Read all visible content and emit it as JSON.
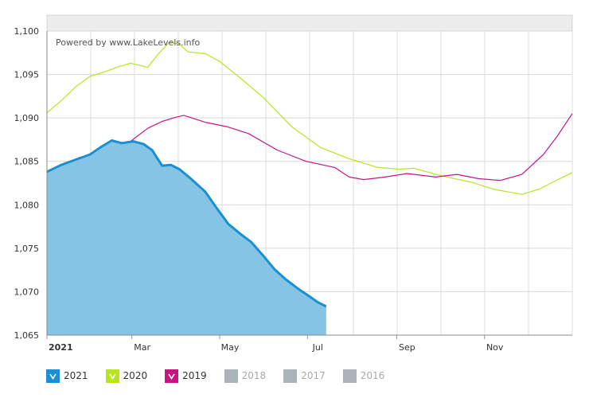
{
  "chart_data": {
    "type": "area",
    "watermark": "Powered by www.LakeLevels.info",
    "ylim": [
      1065,
      1100
    ],
    "xlim_days": [
      0,
      365
    ],
    "y_ticks": [
      "1,100",
      "1,095",
      "1,090",
      "1,085",
      "1,080",
      "1,075",
      "1,070",
      "1,065"
    ],
    "y_tick_values": [
      1100,
      1095,
      1090,
      1085,
      1080,
      1075,
      1070,
      1065
    ],
    "x_ticks": [
      {
        "label": "2021",
        "day": 0,
        "bold": true
      },
      {
        "label": "Mar",
        "day": 59
      },
      {
        "label": "May",
        "day": 120
      },
      {
        "label": "Jul",
        "day": 181
      },
      {
        "label": "Sep",
        "day": 243
      },
      {
        "label": "Nov",
        "day": 304
      }
    ],
    "grid": true,
    "legend_position": "bottom-left",
    "series": [
      {
        "name": "2020",
        "color": "#b5e61d",
        "visible": true,
        "style": "line",
        "points": [
          [
            0,
            1090.6
          ],
          [
            10,
            1092.0
          ],
          [
            20,
            1093.6
          ],
          [
            30,
            1094.8
          ],
          [
            40,
            1095.3
          ],
          [
            50,
            1095.9
          ],
          [
            58,
            1096.3
          ],
          [
            66,
            1096.0
          ],
          [
            70,
            1095.8
          ],
          [
            77,
            1097.3
          ],
          [
            85,
            1098.7
          ],
          [
            92,
            1098.5
          ],
          [
            98,
            1097.6
          ],
          [
            110,
            1097.4
          ],
          [
            120,
            1096.5
          ],
          [
            135,
            1094.5
          ],
          [
            150,
            1092.4
          ],
          [
            170,
            1089.0
          ],
          [
            190,
            1086.6
          ],
          [
            210,
            1085.3
          ],
          [
            230,
            1084.3
          ],
          [
            245,
            1084.1
          ],
          [
            255,
            1084.2
          ],
          [
            275,
            1083.3
          ],
          [
            295,
            1082.6
          ],
          [
            310,
            1081.8
          ],
          [
            330,
            1081.2
          ],
          [
            342,
            1081.8
          ],
          [
            355,
            1082.9
          ],
          [
            365,
            1083.7
          ]
        ]
      },
      {
        "name": "2019",
        "color": "#c71585",
        "visible": true,
        "style": "line",
        "points": [
          [
            0,
            1081.5
          ],
          [
            10,
            1083.0
          ],
          [
            20,
            1084.6
          ],
          [
            30,
            1085.6
          ],
          [
            40,
            1085.9
          ],
          [
            50,
            1086.3
          ],
          [
            58,
            1087.3
          ],
          [
            70,
            1088.8
          ],
          [
            80,
            1089.6
          ],
          [
            90,
            1090.1
          ],
          [
            95,
            1090.3
          ],
          [
            110,
            1089.5
          ],
          [
            125,
            1089.0
          ],
          [
            140,
            1088.2
          ],
          [
            160,
            1086.3
          ],
          [
            180,
            1085.0
          ],
          [
            200,
            1084.3
          ],
          [
            210,
            1083.2
          ],
          [
            220,
            1082.9
          ],
          [
            235,
            1083.2
          ],
          [
            250,
            1083.6
          ],
          [
            270,
            1083.2
          ],
          [
            285,
            1083.5
          ],
          [
            300,
            1083.0
          ],
          [
            315,
            1082.8
          ],
          [
            330,
            1083.5
          ],
          [
            345,
            1085.8
          ],
          [
            355,
            1088.0
          ],
          [
            365,
            1090.5
          ]
        ]
      },
      {
        "name": "2021",
        "color": "#1a8fd1",
        "fill": "#86c4e6",
        "visible": true,
        "style": "area",
        "points": [
          [
            0,
            1083.8
          ],
          [
            10,
            1084.6
          ],
          [
            20,
            1085.2
          ],
          [
            30,
            1085.8
          ],
          [
            37,
            1086.6
          ],
          [
            45,
            1087.4
          ],
          [
            52,
            1087.1
          ],
          [
            60,
            1087.3
          ],
          [
            67,
            1087.0
          ],
          [
            73,
            1086.3
          ],
          [
            80,
            1084.5
          ],
          [
            86,
            1084.6
          ],
          [
            92,
            1084.1
          ],
          [
            100,
            1083.0
          ],
          [
            110,
            1081.5
          ],
          [
            118,
            1079.6
          ],
          [
            126,
            1077.8
          ],
          [
            134,
            1076.7
          ],
          [
            142,
            1075.7
          ],
          [
            150,
            1074.2
          ],
          [
            158,
            1072.6
          ],
          [
            166,
            1071.4
          ],
          [
            174,
            1070.4
          ],
          [
            182,
            1069.5
          ],
          [
            188,
            1068.8
          ],
          [
            194,
            1068.3
          ]
        ]
      }
    ],
    "legend": [
      {
        "label": "2021",
        "color": "#1a8fd1",
        "checked": true
      },
      {
        "label": "2020",
        "color": "#b5e61d",
        "checked": true
      },
      {
        "label": "2019",
        "color": "#c71585",
        "checked": true
      },
      {
        "label": "2018",
        "color": "#a9b3b8",
        "checked": false
      },
      {
        "label": "2017",
        "color": "#a9b3b8",
        "checked": false
      },
      {
        "label": "2016",
        "color": "#a9b3b8",
        "checked": false
      }
    ]
  }
}
